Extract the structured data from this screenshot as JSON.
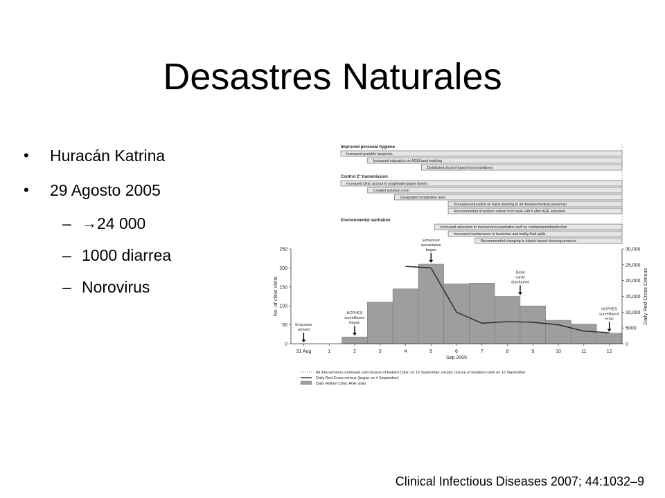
{
  "slide": {
    "title": "Desastres Naturales",
    "bullets": [
      {
        "text": "Huracán Katrina",
        "level": 1
      },
      {
        "text": "29 Agosto 2005",
        "level": 1
      },
      {
        "text": "24 000",
        "level": 2,
        "arrow": true
      },
      {
        "text": "1000 diarrea",
        "level": 2
      },
      {
        "text": "Norovirus",
        "level": 2
      }
    ],
    "citation": "Clinical Infectious Diseases 2007; 44:1032–9"
  },
  "timeline": {
    "groups": [
      {
        "heading": "Improved personal hygiene",
        "bars": [
          {
            "label": "Increased portable lavatories",
            "start_day": 0
          },
          {
            "label": "Increased education on AGE/hand washing",
            "start_day": 1
          },
          {
            "label": "Distributed alcohol-based hand sanitizers",
            "start_day": 3
          }
        ]
      },
      {
        "heading": "Control 2° transmission",
        "bars": [
          {
            "label": "Increased clinic access to soap/water/paper towels",
            "start_day": 0
          },
          {
            "label": "Created isolation room",
            "start_day": 1
          },
          {
            "label": "Designated rehydration area",
            "start_day": 2
          },
          {
            "label": "Increased education on hand washing to all disaster/medical personnel",
            "start_day": 4
          },
          {
            "label": "Recommended ill workers refrain from work ≤48 h after AGE subsided",
            "start_day": 4
          }
        ]
      },
      {
        "heading": "Environmental sanitation",
        "bars": [
          {
            "label": "Increased education to maintenance/sanitation staff on containment/disinfection",
            "start_day": 3.5
          },
          {
            "label": "Increased maintenance in lavatories and bodily-fluid spills",
            "start_day": 4
          },
          {
            "label": "Recommended changing to bleach-based cleaning products",
            "start_day": 5
          }
        ]
      }
    ]
  },
  "chart_data": {
    "type": "bar",
    "categories": [
      "31 Aug",
      "1",
      "2",
      "3",
      "4",
      "5",
      "6",
      "7",
      "8",
      "9",
      "10",
      "11",
      "12"
    ],
    "xlabel": "Sep 2005",
    "ylabel_left": "No. of clinic visits",
    "ylabel_right": "Daily Red Cross Census",
    "ylim_left": [
      0,
      250
    ],
    "ylim_right": [
      0,
      30000
    ],
    "yticks_left": [
      0,
      50,
      100,
      150,
      200,
      250
    ],
    "yticks_right": [
      "0",
      "5000",
      "10,000",
      "15,000",
      "20,000",
      "25,000",
      "30,000"
    ],
    "series": [
      {
        "name": "Daily Reliant Clinic AGE visits",
        "axis": "left",
        "kind": "bar",
        "values": [
          0,
          0,
          18,
          110,
          145,
          210,
          158,
          160,
          125,
          100,
          62,
          52,
          28
        ]
      },
      {
        "name": "Daily Red Cross census (began on 4 September)",
        "axis": "right",
        "kind": "line",
        "x": [
          "4",
          "5",
          "6",
          "7",
          "8",
          "9",
          "10",
          "11",
          "12"
        ],
        "values": [
          24500,
          24000,
          10000,
          6500,
          7000,
          6800,
          6000,
          4000,
          3500
        ]
      }
    ],
    "annotations": [
      {
        "text": "Evacuees arrived",
        "at": "31 Aug"
      },
      {
        "text": "HCPHES surveillance began",
        "at": "2"
      },
      {
        "text": "Enhanced surveillance began",
        "at": "5"
      },
      {
        "text": "Debit cards distributed",
        "at": "8.5"
      },
      {
        "text": "HCPHES surveillance ends",
        "at": "12"
      }
    ],
    "legend": [
      "All interventions continued until closure of Reliant Clinic on 15 September, except closure of isolation room on 10 September",
      "Daily Red Cross census (began on 4 September)",
      "Daily Reliant Clinic AGE visits"
    ],
    "legend_position": "bottom",
    "colors": {
      "bar": "#9e9e9e",
      "line": "#333333",
      "timeline_bar": "#e6e6e6"
    }
  }
}
